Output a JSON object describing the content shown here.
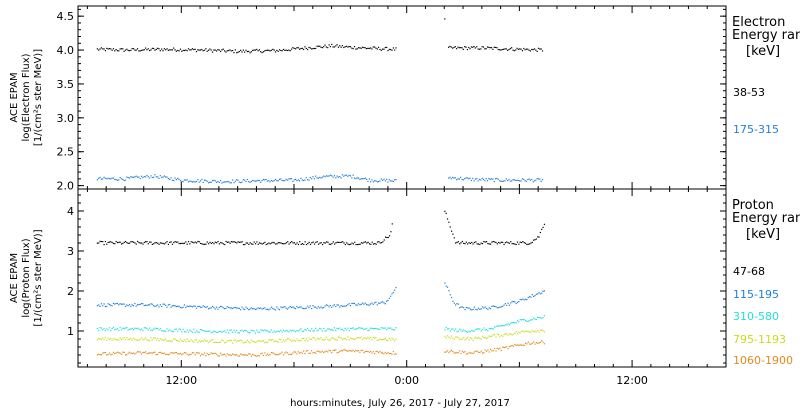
{
  "chart_data": [
    {
      "type": "scatter",
      "panel": "electron",
      "ylabel_lines": [
        "ACE EPAM",
        "log(Electron Flux)",
        "[1/(cm²s ster MeV)]"
      ],
      "ylim": [
        1.95,
        4.65
      ],
      "yticks": [
        "2.0",
        "2.5",
        "3.0",
        "3.5",
        "4.0",
        "4.5"
      ],
      "ytick_values": [
        2.0,
        2.5,
        3.0,
        3.5,
        4.0,
        4.5
      ],
      "legend_title_lines": [
        "Electron",
        "Energy ranges",
        "[keV]"
      ],
      "series": [
        {
          "name": "38-53",
          "color": "#000000",
          "segments": [
            {
              "x0": 7.5,
              "x1": 23.4,
              "points": [
                [
                  7.5,
                  4.01
                ],
                [
                  9,
                  4.0
                ],
                [
                  11,
                  4.01
                ],
                [
                  13,
                  4.0
                ],
                [
                  15,
                  3.98
                ],
                [
                  17,
                  3.99
                ],
                [
                  19,
                  4.04
                ],
                [
                  20,
                  4.06
                ],
                [
                  21,
                  4.04
                ],
                [
                  22.5,
                  4.02
                ],
                [
                  23.4,
                  4.01
                ]
              ]
            },
            {
              "x0": 26.2,
              "x1": 31.2,
              "points": [
                [
                  26.2,
                  4.03
                ],
                [
                  28,
                  4.03
                ],
                [
                  30,
                  4.01
                ],
                [
                  31.2,
                  4.0
                ]
              ]
            }
          ],
          "extra_points": [
            [
              26.0,
              4.46
            ]
          ]
        },
        {
          "name": "175-315",
          "color": "#1f7fd6",
          "segments": [
            {
              "x0": 7.5,
              "x1": 23.4,
              "points": [
                [
                  7.5,
                  2.1
                ],
                [
                  9,
                  2.1
                ],
                [
                  10.5,
                  2.14
                ],
                [
                  12,
                  2.08
                ],
                [
                  14,
                  2.06
                ],
                [
                  16,
                  2.07
                ],
                [
                  18,
                  2.08
                ],
                [
                  19.5,
                  2.13
                ],
                [
                  21,
                  2.14
                ],
                [
                  22,
                  2.08
                ],
                [
                  23.4,
                  2.07
                ]
              ]
            },
            {
              "x0": 26.2,
              "x1": 31.2,
              "points": [
                [
                  26.2,
                  2.12
                ],
                [
                  27.5,
                  2.09
                ],
                [
                  29,
                  2.08
                ],
                [
                  31.2,
                  2.08
                ]
              ]
            }
          ]
        }
      ]
    },
    {
      "type": "scatter",
      "panel": "proton",
      "ylabel_lines": [
        "ACE EPAM",
        "log(Proton Flux)",
        "[1/(cm²s ster MeV)]"
      ],
      "ylim": [
        0.1,
        4.55
      ],
      "yticks": [
        "1",
        "2",
        "3",
        "4"
      ],
      "ytick_values": [
        1,
        2,
        3,
        4
      ],
      "legend_title_lines": [
        "Proton",
        "Energy ranges",
        "[keV]"
      ],
      "series": [
        {
          "name": "47-68",
          "color": "#000000",
          "segments": [
            {
              "x0": 7.5,
              "x1": 23.2,
              "points": [
                [
                  7.5,
                  3.2
                ],
                [
                  12,
                  3.2
                ],
                [
                  17,
                  3.2
                ],
                [
                  22.5,
                  3.2
                ],
                [
                  23.1,
                  3.4
                ],
                [
                  23.3,
                  3.9
                ],
                [
                  23.45,
                  4.3
                ]
              ]
            },
            {
              "x0": 26.0,
              "x1": 31.3,
              "points": [
                [
                  26.0,
                  4.0
                ],
                [
                  26.3,
                  3.6
                ],
                [
                  26.6,
                  3.2
                ],
                [
                  29,
                  3.2
                ],
                [
                  30.5,
                  3.2
                ],
                [
                  31.0,
                  3.35
                ],
                [
                  31.3,
                  3.7
                ]
              ]
            }
          ]
        },
        {
          "name": "115-195",
          "color": "#1f7fd6",
          "segments": [
            {
              "x0": 7.5,
              "x1": 23.4,
              "points": [
                [
                  7.5,
                  1.65
                ],
                [
                  10,
                  1.65
                ],
                [
                  13,
                  1.6
                ],
                [
                  16,
                  1.55
                ],
                [
                  19,
                  1.6
                ],
                [
                  21,
                  1.65
                ],
                [
                  22.8,
                  1.7
                ],
                [
                  23.2,
                  1.9
                ],
                [
                  23.4,
                  2.1
                ]
              ]
            },
            {
              "x0": 26.0,
              "x1": 31.3,
              "points": [
                [
                  26.0,
                  2.2
                ],
                [
                  26.5,
                  1.7
                ],
                [
                  27,
                  1.55
                ],
                [
                  28.5,
                  1.58
                ],
                [
                  30,
                  1.75
                ],
                [
                  31.3,
                  2.0
                ]
              ]
            }
          ]
        },
        {
          "name": "310-580",
          "color": "#22dddd",
          "segments": [
            {
              "x0": 7.5,
              "x1": 23.4,
              "points": [
                [
                  7.5,
                  1.05
                ],
                [
                  10,
                  1.05
                ],
                [
                  13,
                  1.0
                ],
                [
                  16,
                  0.98
                ],
                [
                  19,
                  1.03
                ],
                [
                  21,
                  1.05
                ],
                [
                  23.4,
                  1.05
                ]
              ]
            },
            {
              "x0": 26.0,
              "x1": 31.3,
              "points": [
                [
                  26.0,
                  1.05
                ],
                [
                  27,
                  1.0
                ],
                [
                  28.5,
                  1.05
                ],
                [
                  30,
                  1.25
                ],
                [
                  31.3,
                  1.35
                ]
              ]
            }
          ]
        },
        {
          "name": "795-1193",
          "color": "#c8dc1a",
          "segments": [
            {
              "x0": 7.5,
              "x1": 23.4,
              "points": [
                [
                  7.5,
                  0.8
                ],
                [
                  10,
                  0.8
                ],
                [
                  13,
                  0.75
                ],
                [
                  16,
                  0.73
                ],
                [
                  19,
                  0.8
                ],
                [
                  21,
                  0.82
                ],
                [
                  23.4,
                  0.78
                ]
              ]
            },
            {
              "x0": 26.0,
              "x1": 31.3,
              "points": [
                [
                  26.0,
                  0.85
                ],
                [
                  27.5,
                  0.8
                ],
                [
                  29,
                  0.9
                ],
                [
                  30.5,
                  1.0
                ],
                [
                  31.3,
                  1.02
                ]
              ]
            }
          ]
        },
        {
          "name": "1060-1900",
          "color": "#e08a1e",
          "segments": [
            {
              "x0": 7.5,
              "x1": 23.4,
              "points": [
                [
                  7.5,
                  0.42
                ],
                [
                  10,
                  0.45
                ],
                [
                  13,
                  0.42
                ],
                [
                  16,
                  0.4
                ],
                [
                  19,
                  0.48
                ],
                [
                  21,
                  0.5
                ],
                [
                  23.4,
                  0.45
                ]
              ]
            },
            {
              "x0": 26.0,
              "x1": 31.3,
              "points": [
                [
                  26.0,
                  0.5
                ],
                [
                  27.5,
                  0.45
                ],
                [
                  29,
                  0.55
                ],
                [
                  30.5,
                  0.7
                ],
                [
                  31.3,
                  0.72
                ]
              ]
            }
          ]
        }
      ]
    }
  ],
  "x_axis": {
    "xlim": [
      6.5,
      41.0
    ],
    "ticks": [
      {
        "value": 12,
        "label": "12:00"
      },
      {
        "value": 24,
        "label": "0:00"
      },
      {
        "value": 36,
        "label": "12:00"
      }
    ],
    "minor_step": 1,
    "xlabel": "hours:minutes, July 26, 2017 - July 27, 2017"
  }
}
